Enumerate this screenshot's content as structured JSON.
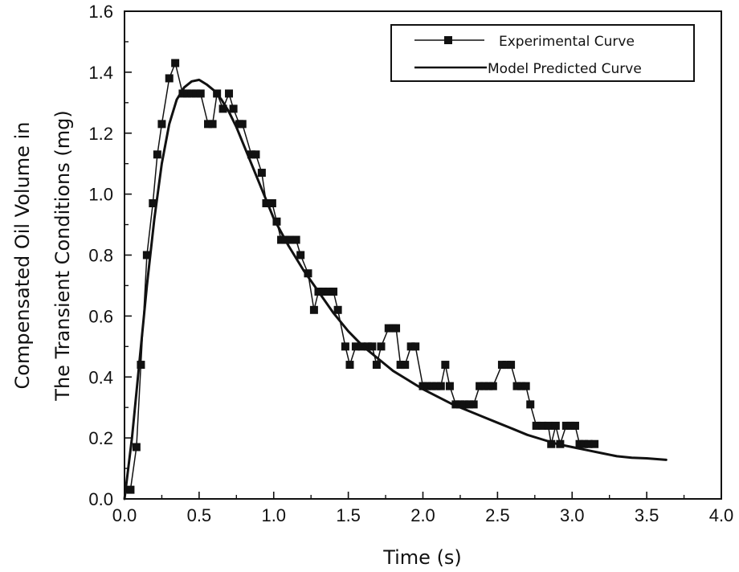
{
  "chart_data": {
    "type": "line",
    "title": "",
    "xlabel": "Time (s)",
    "ylabel_lines": [
      "Compensated Oil Volume in",
      "The Transient Conditions (mg)"
    ],
    "xlim": [
      0.0,
      4.0
    ],
    "ylim": [
      0.0,
      1.6
    ],
    "x_ticks": [
      "0.0",
      "0.5",
      "1.0",
      "1.5",
      "2.0",
      "2.5",
      "3.0",
      "3.5",
      "4.0"
    ],
    "x_tick_values": [
      0.0,
      0.5,
      1.0,
      1.5,
      2.0,
      2.5,
      3.0,
      3.5,
      4.0
    ],
    "y_ticks": [
      "0.0",
      "0.2",
      "0.4",
      "0.6",
      "0.8",
      "1.0",
      "1.2",
      "1.4",
      "1.6"
    ],
    "y_tick_values": [
      0.0,
      0.2,
      0.4,
      0.6,
      0.8,
      1.0,
      1.2,
      1.4,
      1.6
    ],
    "grid": false,
    "legend_position": "top-right",
    "series": [
      {
        "name": "Experimental Curve",
        "style": "line-with-square-markers",
        "color": "#111111",
        "x": [
          0.04,
          0.08,
          0.11,
          0.15,
          0.19,
          0.22,
          0.25,
          0.3,
          0.34,
          0.39,
          0.42,
          0.45,
          0.48,
          0.51,
          0.56,
          0.59,
          0.62,
          0.66,
          0.7,
          0.73,
          0.77,
          0.79,
          0.85,
          0.88,
          0.92,
          0.95,
          0.99,
          1.02,
          1.05,
          1.08,
          1.11,
          1.15,
          1.18,
          1.23,
          1.27,
          1.3,
          1.33,
          1.37,
          1.4,
          1.43,
          1.48,
          1.51,
          1.55,
          1.59,
          1.63,
          1.66,
          1.69,
          1.72,
          1.77,
          1.8,
          1.82,
          1.85,
          1.88,
          1.92,
          1.95,
          2.0,
          2.03,
          2.06,
          2.09,
          2.12,
          2.15,
          2.18,
          2.22,
          2.25,
          2.28,
          2.31,
          2.34,
          2.38,
          2.41,
          2.44,
          2.47,
          2.53,
          2.56,
          2.59,
          2.63,
          2.66,
          2.69,
          2.72,
          2.76,
          2.8,
          2.84,
          2.86,
          2.89,
          2.92,
          2.96,
          2.99,
          3.02,
          3.05,
          3.08,
          3.11,
          3.15
        ],
        "y": [
          0.03,
          0.17,
          0.44,
          0.8,
          0.97,
          1.13,
          1.23,
          1.38,
          1.43,
          1.33,
          1.33,
          1.33,
          1.33,
          1.33,
          1.23,
          1.23,
          1.33,
          1.28,
          1.33,
          1.28,
          1.23,
          1.23,
          1.13,
          1.13,
          1.07,
          0.97,
          0.97,
          0.91,
          0.85,
          0.85,
          0.85,
          0.85,
          0.8,
          0.74,
          0.62,
          0.68,
          0.68,
          0.68,
          0.68,
          0.62,
          0.5,
          0.44,
          0.5,
          0.5,
          0.5,
          0.5,
          0.44,
          0.5,
          0.56,
          0.56,
          0.56,
          0.44,
          0.44,
          0.5,
          0.5,
          0.37,
          0.37,
          0.37,
          0.37,
          0.37,
          0.44,
          0.37,
          0.31,
          0.31,
          0.31,
          0.31,
          0.31,
          0.37,
          0.37,
          0.37,
          0.37,
          0.44,
          0.44,
          0.44,
          0.37,
          0.37,
          0.37,
          0.31,
          0.24,
          0.24,
          0.24,
          0.18,
          0.24,
          0.18,
          0.24,
          0.24,
          0.24,
          0.18,
          0.18,
          0.18,
          0.18
        ]
      },
      {
        "name": "Model Predicted Curve",
        "style": "line",
        "color": "#111111",
        "x": [
          0.0,
          0.05,
          0.1,
          0.15,
          0.2,
          0.25,
          0.3,
          0.35,
          0.4,
          0.45,
          0.5,
          0.55,
          0.6,
          0.65,
          0.7,
          0.75,
          0.8,
          0.85,
          0.9,
          0.95,
          1.0,
          1.1,
          1.2,
          1.3,
          1.4,
          1.5,
          1.6,
          1.7,
          1.8,
          1.9,
          2.0,
          2.1,
          2.2,
          2.3,
          2.4,
          2.5,
          2.6,
          2.7,
          2.8,
          2.9,
          3.0,
          3.1,
          3.2,
          3.3,
          3.4,
          3.5,
          3.63
        ],
        "y": [
          0.0,
          0.2,
          0.45,
          0.7,
          0.92,
          1.1,
          1.23,
          1.31,
          1.35,
          1.37,
          1.375,
          1.36,
          1.34,
          1.31,
          1.27,
          1.22,
          1.16,
          1.1,
          1.04,
          0.98,
          0.92,
          0.83,
          0.75,
          0.68,
          0.61,
          0.55,
          0.5,
          0.46,
          0.42,
          0.39,
          0.36,
          0.335,
          0.31,
          0.29,
          0.27,
          0.25,
          0.23,
          0.21,
          0.195,
          0.18,
          0.17,
          0.16,
          0.15,
          0.14,
          0.135,
          0.133,
          0.128
        ]
      }
    ]
  }
}
